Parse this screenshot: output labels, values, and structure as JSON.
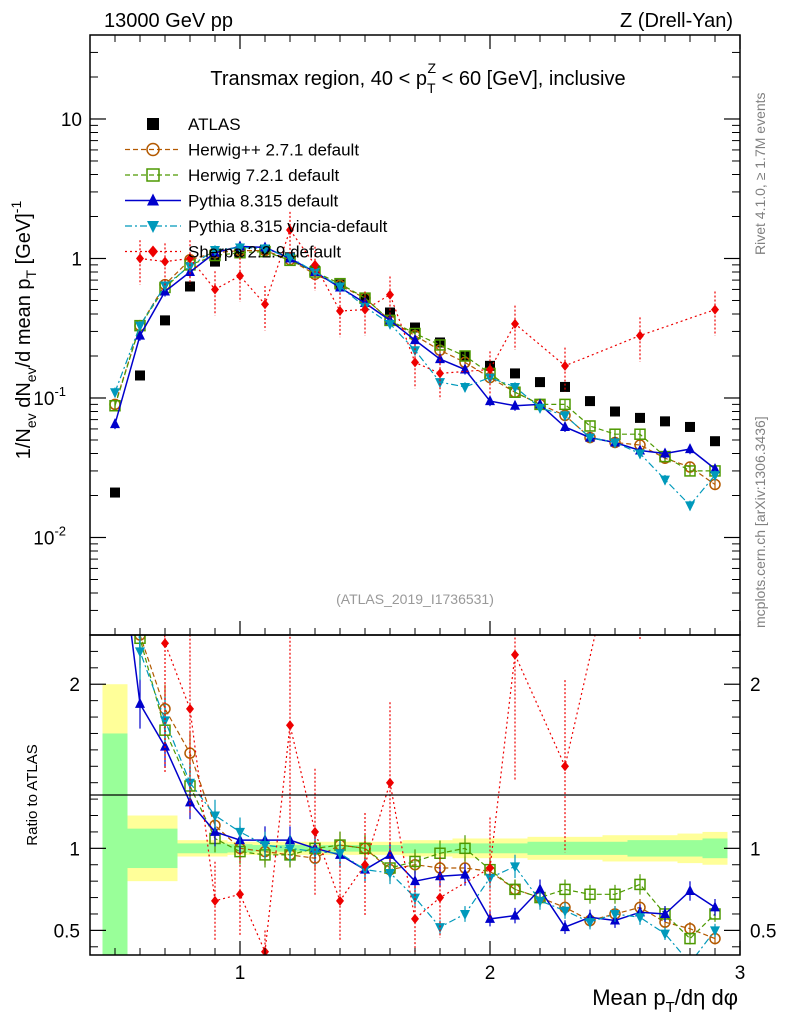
{
  "header": {
    "left": "13000 GeV pp",
    "right": "Z (Drell-Yan)"
  },
  "side_text": {
    "rivet": "Rivet 4.1.0, ≥ 1.7M events",
    "mcplots": "mcplots.cern.ch [arXiv:1306.3436]"
  },
  "chart_data": {
    "type": "scatter",
    "title": "Transmax region, 40 < pTZ < 60 [GeV], inclusive",
    "title_parts": {
      "a": "Transmax region, 40 < p",
      "sub": "T",
      "sup": "Z",
      "b": " < 60 [GeV], inclusive"
    },
    "analysis_id": "(ATLAS_2019_I1736531)",
    "xlabel": "Mean pT/dη dφ",
    "xlabel_parts": {
      "a": "Mean p",
      "sub": "T",
      "b": "/dη dφ"
    },
    "ylabel": "1/Nev dNev/d mean pT [GeV]^-1",
    "ylabel_parts": {
      "a": "1/N",
      "s1": "ev",
      "b": " dN",
      "s2": "ev",
      "c": "/d mean p",
      "s3": "T",
      "d": " [GeV]",
      "sup": "-1"
    },
    "ratio_ylabel": "Ratio to ATLAS",
    "xlim": [
      0.4,
      3.0
    ],
    "ylim": [
      0.002,
      40
    ],
    "ratio_ylim": [
      0.35,
      2.3
    ],
    "x_ticks": [
      "1",
      "2",
      "3"
    ],
    "y_ticks": [
      {
        "base": "10",
        "exp": "-2"
      },
      {
        "base": "10",
        "exp": "-1"
      },
      {
        "base": "1",
        "exp": ""
      },
      {
        "base": "10",
        "exp": ""
      }
    ],
    "ratio_ticks": [
      "0.5",
      "1",
      "2"
    ],
    "x": [
      0.5,
      0.6,
      0.7,
      0.8,
      0.9,
      1.0,
      1.1,
      1.2,
      1.3,
      1.4,
      1.5,
      1.6,
      1.7,
      1.8,
      1.9,
      2.0,
      2.1,
      2.2,
      2.3,
      2.4,
      2.5,
      2.6,
      2.7,
      2.8,
      2.9
    ],
    "legend_position": "top-left",
    "series": [
      {
        "name": "ATLAS",
        "color": "#000000",
        "marker": "square-filled",
        "line": "none",
        "values": [
          0.021,
          0.145,
          0.36,
          0.63,
          0.95,
          1.12,
          1.16,
          1.02,
          0.82,
          0.65,
          0.52,
          0.41,
          0.32,
          0.25,
          0.2,
          0.17,
          0.15,
          0.13,
          0.12,
          0.095,
          0.08,
          0.072,
          0.068,
          0.062,
          0.049
        ],
        "ratio": [
          1,
          1,
          1,
          1,
          1,
          1,
          1,
          1,
          1,
          1,
          1,
          1,
          1,
          1,
          1,
          1,
          1,
          1,
          1,
          1,
          1,
          1,
          1,
          1,
          1
        ]
      },
      {
        "name": "Herwig++ 2.7.1 default",
        "color": "#b35900",
        "marker": "circle-open",
        "line": "dashed",
        "values": [
          0.09,
          0.33,
          0.65,
          0.98,
          1.1,
          1.14,
          1.14,
          0.98,
          0.77,
          0.64,
          0.52,
          0.36,
          0.28,
          0.22,
          0.18,
          0.14,
          0.11,
          0.09,
          0.075,
          0.052,
          0.048,
          0.046,
          0.037,
          0.032,
          0.024
        ],
        "ratio": [
          4.2,
          2.3,
          1.85,
          1.58,
          1.14,
          1.0,
          0.98,
          0.96,
          0.94,
          1.02,
          1.0,
          0.87,
          0.9,
          0.88,
          0.88,
          0.86,
          0.75,
          0.7,
          0.64,
          0.56,
          0.6,
          0.64,
          0.55,
          0.51,
          0.45
        ]
      },
      {
        "name": "Herwig 7.2.1 default",
        "color": "#4d9900",
        "marker": "square-open",
        "line": "dashed",
        "values": [
          0.088,
          0.33,
          0.62,
          0.9,
          1.05,
          1.1,
          1.12,
          0.97,
          0.8,
          0.66,
          0.52,
          0.36,
          0.29,
          0.24,
          0.2,
          0.15,
          0.11,
          0.09,
          0.09,
          0.063,
          0.055,
          0.055,
          0.038,
          0.03,
          0.03
        ],
        "ratio": [
          4.1,
          2.28,
          1.72,
          1.38,
          1.06,
          0.98,
          0.96,
          0.96,
          1.0,
          1.02,
          1.0,
          0.88,
          0.92,
          0.97,
          1.0,
          0.87,
          0.75,
          0.7,
          0.75,
          0.72,
          0.72,
          0.78,
          0.6,
          0.45,
          0.6
        ]
      },
      {
        "name": "Pythia 8.315 default",
        "color": "#0000cc",
        "marker": "triangle-up-filled",
        "line": "solid",
        "values": [
          0.065,
          0.28,
          0.58,
          0.8,
          1.1,
          1.22,
          1.2,
          1.0,
          0.8,
          0.62,
          0.48,
          0.36,
          0.26,
          0.19,
          0.16,
          0.095,
          0.088,
          0.09,
          0.062,
          0.052,
          0.048,
          0.042,
          0.04,
          0.043,
          0.031
        ],
        "ratio": [
          3.1,
          1.88,
          1.62,
          1.28,
          1.1,
          1.05,
          1.05,
          1.05,
          1.0,
          0.96,
          0.87,
          0.96,
          0.8,
          0.83,
          0.84,
          0.57,
          0.59,
          0.75,
          0.52,
          0.58,
          0.56,
          0.61,
          0.6,
          0.74,
          0.64
        ]
      },
      {
        "name": "Pythia 8.315 vincia-default",
        "color": "#0099bb",
        "marker": "triangle-down-filled",
        "line": "dashdot",
        "values": [
          0.11,
          0.33,
          0.64,
          0.88,
          1.15,
          1.2,
          1.18,
          1.02,
          0.8,
          0.63,
          0.45,
          0.34,
          0.22,
          0.13,
          0.12,
          0.14,
          0.12,
          0.085,
          0.075,
          0.052,
          0.048,
          0.04,
          0.026,
          0.017,
          0.028
        ],
        "ratio": [
          5.0,
          2.2,
          1.78,
          1.4,
          1.2,
          1.1,
          1.02,
          1.0,
          0.98,
          0.97,
          0.87,
          0.85,
          0.7,
          0.52,
          0.6,
          0.82,
          0.89,
          0.68,
          0.62,
          0.55,
          0.6,
          0.58,
          0.48,
          0.3,
          0.5
        ]
      },
      {
        "name": "Sherpa 2.2.9 default",
        "color": "#ee0000",
        "marker": "diamond-filled",
        "line": "dotted",
        "values": [
          null,
          1.0,
          0.95,
          1.0,
          0.6,
          0.75,
          0.47,
          1.6,
          0.9,
          0.42,
          0.43,
          0.55,
          0.18,
          0.15,
          null,
          0.16,
          0.34,
          null,
          0.17,
          null,
          null,
          0.28,
          null,
          null,
          0.43
        ],
        "ratio": [
          null,
          6.5,
          2.25,
          1.85,
          0.68,
          0.72,
          0.37,
          1.75,
          1.1,
          0.68,
          0.9,
          1.4,
          0.57,
          0.7,
          null,
          0.88,
          2.18,
          null,
          1.5,
          null,
          null,
          3.5,
          null,
          null,
          8.0
        ]
      }
    ]
  }
}
